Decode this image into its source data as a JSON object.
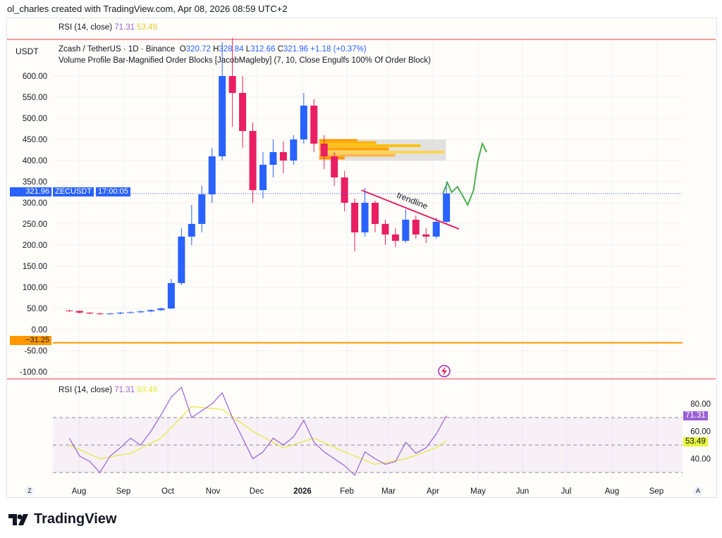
{
  "credit": "ol_charles created with TradingView.com, Apr 08, 2026 08:59 UTC+2",
  "top_rsi_legend": {
    "label": "RSI (14, close)",
    "rsi": "71.31",
    "ma": "53.49"
  },
  "symbol_legend": {
    "currency": "USDT",
    "title": "Zcash / TetherUS · 1D · Binance",
    "o_label": "O",
    "o": "320.72",
    "h_label": "H",
    "h": "328.84",
    "l_label": "L",
    "l": "312.66",
    "c_label": "C",
    "c": "321.96",
    "change": "+1.18 (+0.37%)"
  },
  "indicator_legend": "Volume Profile Bar-Magnified Order Blocks [JacobMagleby] (7, 10, Close Engulfs 100% Of Order Block)",
  "price_tag": {
    "price": "321.96",
    "countdown": "17:00:05",
    "symbol": "ZECUSDT"
  },
  "level_tag": "−31.25",
  "rsi_legend": {
    "label": "RSI (14, close)",
    "rsi": "71.31",
    "ma": "53.49"
  },
  "rsi_tags": {
    "rsi": "71.31",
    "ma": "53.49"
  },
  "colors": {
    "up": "#2962ff",
    "down": "#e91e63",
    "level": "#ff9800",
    "rsi": "#9c5fd6",
    "rsi_ma": "#e5e835",
    "projection": "#4caf50",
    "trendline": "#e91e63"
  },
  "trendline_label": "trendline",
  "axis_buttons": {
    "left": "Z",
    "right": "A"
  },
  "brand": "TradingView",
  "chart_data": [
    {
      "type": "candlestick",
      "ylim": [
        -120,
        650
      ],
      "y_ticks": [
        "600.00",
        "550.00",
        "500.00",
        "450.00",
        "400.00",
        "350.00",
        "300.00",
        "250.00",
        "200.00",
        "150.00",
        "100.00",
        "50.00",
        "0.00",
        "-50.00",
        "-100.00"
      ],
      "x_ticks": [
        "Aug",
        "Sep",
        "Oct",
        "Nov",
        "Dec",
        "2026",
        "Feb",
        "Mar",
        "Apr",
        "May",
        "Jun",
        "Jul",
        "Aug",
        "Sep"
      ],
      "candles": [
        [
          "2025-07-22",
          45,
          47,
          42,
          44
        ],
        [
          "2025-07-29",
          44,
          45,
          38,
          40
        ],
        [
          "2025-08-05",
          40,
          41,
          36,
          38
        ],
        [
          "2025-08-12",
          38,
          40,
          35,
          37
        ],
        [
          "2025-08-19",
          37,
          39,
          35,
          38
        ],
        [
          "2025-08-26",
          38,
          42,
          36,
          40
        ],
        [
          "2025-09-02",
          40,
          43,
          38,
          41
        ],
        [
          "2025-09-09",
          41,
          45,
          39,
          43
        ],
        [
          "2025-09-16",
          43,
          48,
          41,
          46
        ],
        [
          "2025-09-23",
          46,
          52,
          44,
          50
        ],
        [
          "2025-09-30",
          50,
          120,
          48,
          110
        ],
        [
          "2025-10-07",
          110,
          240,
          105,
          220
        ],
        [
          "2025-10-14",
          220,
          295,
          200,
          250
        ],
        [
          "2025-10-21",
          250,
          340,
          230,
          320
        ],
        [
          "2025-10-28",
          320,
          430,
          300,
          410
        ],
        [
          "2025-11-04",
          410,
          680,
          400,
          600
        ],
        [
          "2025-11-11",
          600,
          690,
          480,
          560
        ],
        [
          "2025-11-18",
          560,
          600,
          430,
          470
        ],
        [
          "2025-11-25",
          470,
          490,
          300,
          330
        ],
        [
          "2025-12-02",
          330,
          420,
          310,
          390
        ],
        [
          "2025-12-09",
          390,
          450,
          360,
          420
        ],
        [
          "2025-12-16",
          420,
          445,
          370,
          400
        ],
        [
          "2025-12-23",
          400,
          460,
          390,
          450
        ],
        [
          "2025-12-30",
          450,
          560,
          440,
          530
        ],
        [
          "2026-01-06",
          530,
          545,
          420,
          440
        ],
        [
          "2026-01-13",
          440,
          460,
          380,
          410
        ],
        [
          "2026-01-20",
          410,
          420,
          340,
          360
        ],
        [
          "2026-01-27",
          360,
          375,
          280,
          300
        ],
        [
          "2026-02-03",
          300,
          310,
          185,
          230
        ],
        [
          "2026-02-10",
          230,
          335,
          220,
          300
        ],
        [
          "2026-02-17",
          300,
          305,
          230,
          250
        ],
        [
          "2026-02-24",
          250,
          260,
          200,
          225
        ],
        [
          "2026-03-03",
          225,
          240,
          195,
          210
        ],
        [
          "2026-03-10",
          210,
          285,
          205,
          260
        ],
        [
          "2026-03-17",
          260,
          270,
          215,
          225
        ],
        [
          "2026-03-24",
          225,
          240,
          205,
          220
        ],
        [
          "2026-03-31",
          220,
          265,
          215,
          255
        ],
        [
          "2026-04-07",
          255,
          350,
          250,
          322
        ]
      ],
      "horizontal_level": -31.25,
      "last_price": 321.96,
      "order_block": {
        "from": "2026-01-13",
        "to": "2026-04-10",
        "top": 450,
        "bottom": 400
      },
      "trendline": [
        [
          "2026-02-11",
          330
        ],
        [
          "2026-04-19",
          238
        ]
      ],
      "projection": [
        [
          "2026-04-08",
          322
        ],
        [
          "2026-04-11",
          348
        ],
        [
          "2026-04-14",
          325
        ],
        [
          "2026-04-18",
          338
        ],
        [
          "2026-04-21",
          320
        ],
        [
          "2026-04-25",
          295
        ],
        [
          "2026-04-29",
          330
        ],
        [
          "2026-05-02",
          400
        ],
        [
          "2026-05-05",
          440
        ],
        [
          "2026-05-08",
          420
        ]
      ]
    },
    {
      "type": "line",
      "title": "RSI (14, close)",
      "ylim": [
        25,
        95
      ],
      "y_ticks": [
        "80.00",
        "60.00",
        "40.00"
      ],
      "bands": [
        70,
        50,
        30
      ],
      "rsi": [
        [
          "2025-07-22",
          55
        ],
        [
          "2025-07-29",
          42
        ],
        [
          "2025-08-05",
          38
        ],
        [
          "2025-08-12",
          30
        ],
        [
          "2025-08-19",
          42
        ],
        [
          "2025-08-26",
          48
        ],
        [
          "2025-09-02",
          55
        ],
        [
          "2025-09-09",
          50
        ],
        [
          "2025-09-16",
          60
        ],
        [
          "2025-09-23",
          72
        ],
        [
          "2025-09-30",
          85
        ],
        [
          "2025-10-07",
          92
        ],
        [
          "2025-10-14",
          70
        ],
        [
          "2025-10-21",
          75
        ],
        [
          "2025-10-28",
          80
        ],
        [
          "2025-11-04",
          88
        ],
        [
          "2025-11-11",
          70
        ],
        [
          "2025-11-18",
          55
        ],
        [
          "2025-11-25",
          40
        ],
        [
          "2025-12-02",
          45
        ],
        [
          "2025-12-09",
          55
        ],
        [
          "2025-12-16",
          50
        ],
        [
          "2025-12-23",
          56
        ],
        [
          "2025-12-30",
          68
        ],
        [
          "2026-01-06",
          52
        ],
        [
          "2026-01-13",
          45
        ],
        [
          "2026-01-20",
          40
        ],
        [
          "2026-01-27",
          35
        ],
        [
          "2026-02-03",
          28
        ],
        [
          "2026-02-10",
          45
        ],
        [
          "2026-02-17",
          40
        ],
        [
          "2026-02-24",
          36
        ],
        [
          "2026-03-03",
          38
        ],
        [
          "2026-03-10",
          52
        ],
        [
          "2026-03-17",
          44
        ],
        [
          "2026-03-24",
          48
        ],
        [
          "2026-03-31",
          58
        ],
        [
          "2026-04-07",
          71.31
        ]
      ],
      "rsi_ma": [
        [
          "2025-07-22",
          50
        ],
        [
          "2025-08-12",
          40
        ],
        [
          "2025-09-02",
          44
        ],
        [
          "2025-09-23",
          55
        ],
        [
          "2025-10-14",
          78
        ],
        [
          "2025-11-04",
          76
        ],
        [
          "2025-11-25",
          60
        ],
        [
          "2025-12-16",
          48
        ],
        [
          "2026-01-06",
          55
        ],
        [
          "2026-01-27",
          45
        ],
        [
          "2026-02-17",
          36
        ],
        [
          "2026-03-10",
          40
        ],
        [
          "2026-03-31",
          48
        ],
        [
          "2026-04-07",
          53.49
        ]
      ]
    }
  ]
}
